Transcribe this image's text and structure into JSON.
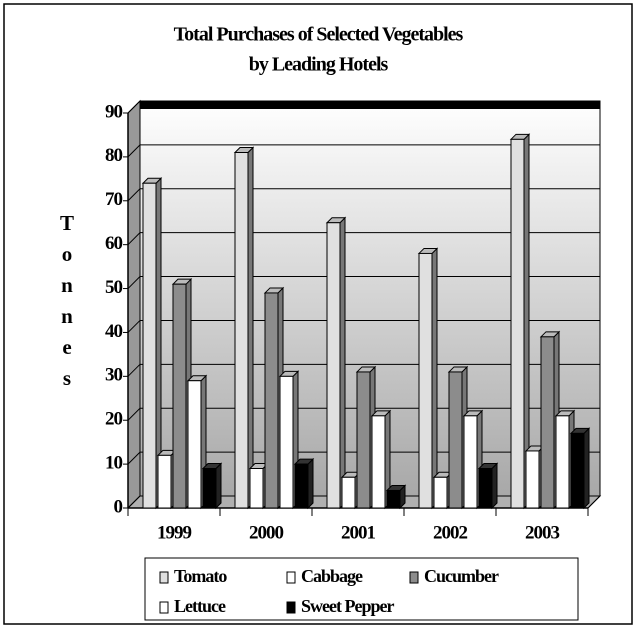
{
  "chart_data": {
    "type": "bar3d",
    "title": [
      "Total Purchases of Selected Vegetables",
      "by Leading Hotels"
    ],
    "y_label": "Tonnes",
    "categories": [
      "1999",
      "2000",
      "2001",
      "2002",
      "2003"
    ],
    "series": [
      {
        "name": "Tomato",
        "color": "#e0e0e0",
        "values": [
          74,
          81,
          65,
          58,
          84
        ]
      },
      {
        "name": "Cabbage",
        "color": "#ffffff",
        "values": [
          12,
          9,
          7,
          7,
          13
        ]
      },
      {
        "name": "Cucumber",
        "color": "#8c8c8c",
        "values": [
          51,
          49,
          31,
          31,
          39
        ]
      },
      {
        "name": "Lettuce",
        "color": "#ffffff",
        "values": [
          29,
          30,
          21,
          21,
          21
        ]
      },
      {
        "name": "Sweet Pepper",
        "color": "#000000",
        "values": [
          9,
          10,
          4,
          9,
          17
        ]
      }
    ],
    "ylim": [
      0,
      90
    ],
    "yticks": [
      0,
      10,
      20,
      30,
      40,
      50,
      60,
      70,
      80,
      90
    ],
    "grid": true
  }
}
